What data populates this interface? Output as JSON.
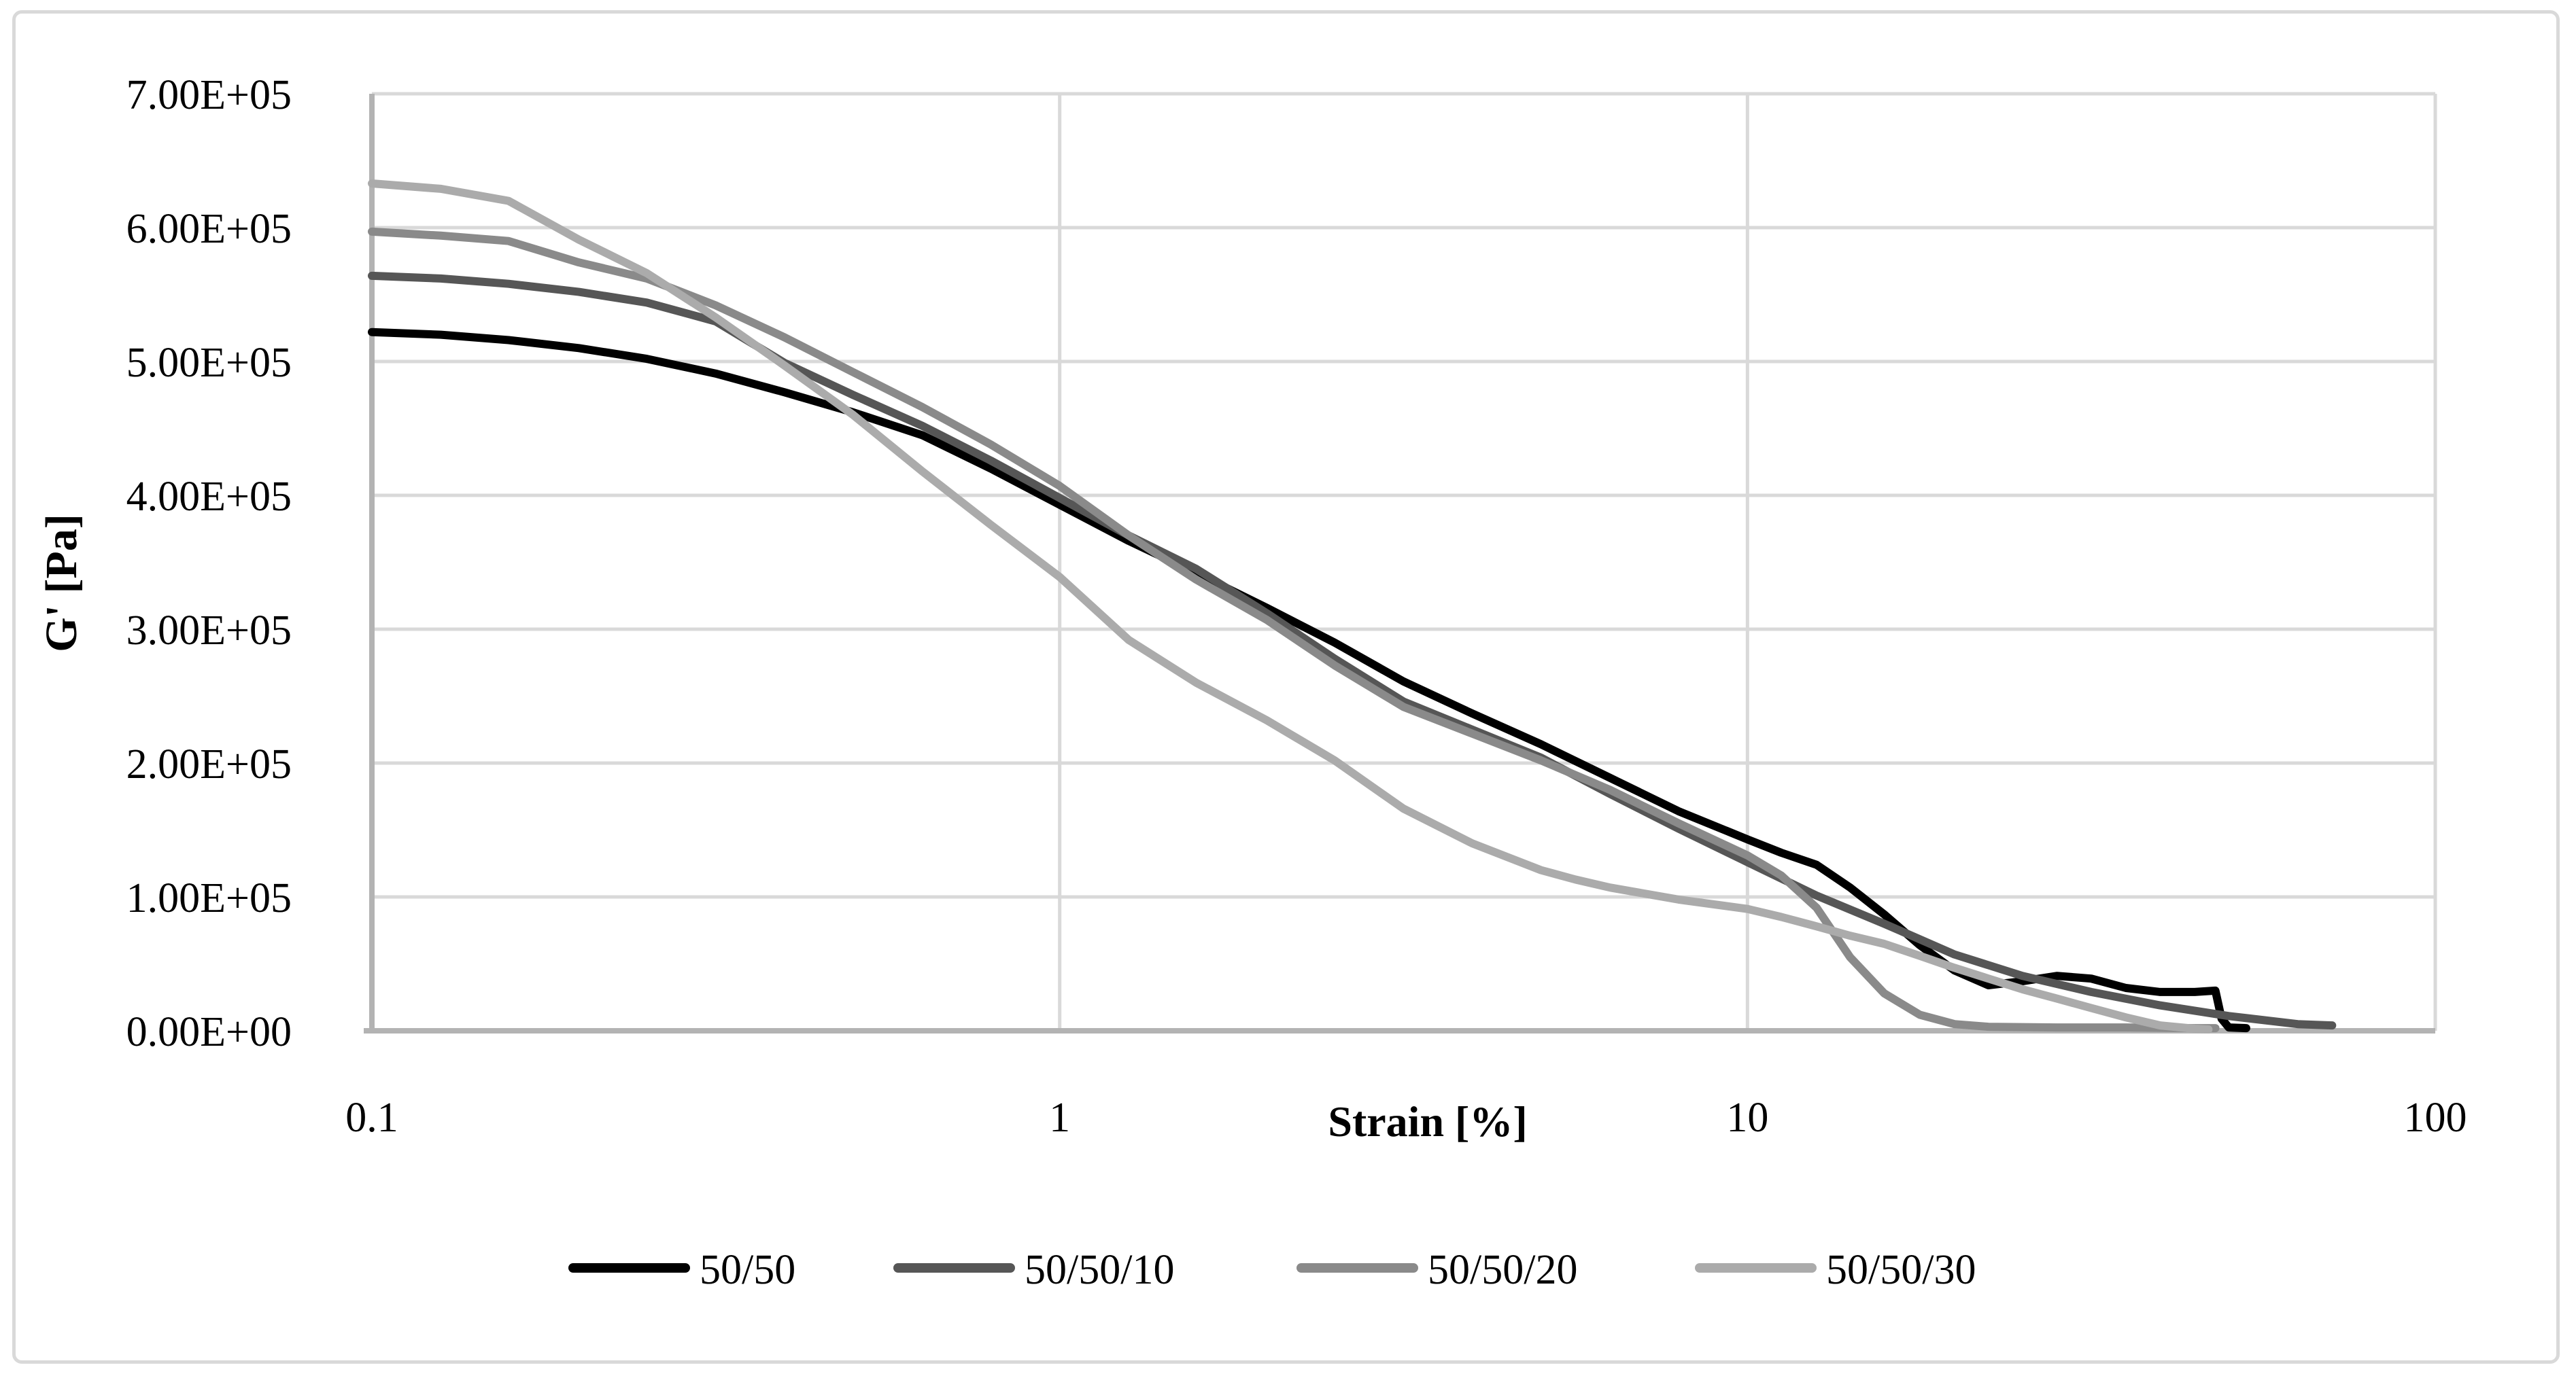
{
  "figure": {
    "background": "#ffffff",
    "border_color": "#d9d9d9"
  },
  "chart_data": {
    "type": "line",
    "title": "",
    "xlabel": "Strain [%]",
    "ylabel": "G' [Pa]",
    "x_scale": "log",
    "xlim": [
      0.1,
      100
    ],
    "ylim": [
      0,
      700000
    ],
    "x_ticks": [
      0.1,
      1,
      10,
      100
    ],
    "x_tick_labels": [
      "0.1",
      "1",
      "10",
      "100"
    ],
    "y_ticks": [
      0,
      100000,
      200000,
      300000,
      400000,
      500000,
      600000,
      700000
    ],
    "y_tick_labels": [
      "0.00E+00",
      "1.00E+05",
      "2.00E+05",
      "3.00E+05",
      "4.00E+05",
      "5.00E+05",
      "6.00E+05",
      "7.00E+05"
    ],
    "grid": true,
    "grid_color": "#d9d9d9",
    "axis_color": "#b3b3b3",
    "legend_position": "bottom",
    "legend_entries": [
      "50/50",
      "50/50/10",
      "50/50/20",
      "50/50/30"
    ],
    "series": [
      {
        "name": "50/50",
        "color": "#000000",
        "points": [
          [
            0.1,
            522000
          ],
          [
            0.126,
            520000
          ],
          [
            0.158,
            516000
          ],
          [
            0.2,
            510000
          ],
          [
            0.251,
            502000
          ],
          [
            0.316,
            491000
          ],
          [
            0.398,
            477000
          ],
          [
            0.501,
            462000
          ],
          [
            0.631,
            445000
          ],
          [
            0.794,
            420000
          ],
          [
            1.0,
            393000
          ],
          [
            1.26,
            366000
          ],
          [
            1.58,
            342000
          ],
          [
            2.0,
            316000
          ],
          [
            2.51,
            290000
          ],
          [
            3.16,
            261000
          ],
          [
            3.98,
            237000
          ],
          [
            5.01,
            214000
          ],
          [
            6.31,
            189000
          ],
          [
            7.94,
            164000
          ],
          [
            10,
            143000
          ],
          [
            11.2,
            133000
          ],
          [
            12.6,
            124000
          ],
          [
            14.1,
            107000
          ],
          [
            15.8,
            87000
          ],
          [
            17.8,
            64000
          ],
          [
            20,
            45000
          ],
          [
            22.4,
            34000
          ],
          [
            25.1,
            37000
          ],
          [
            28.2,
            41000
          ],
          [
            31.6,
            39000
          ],
          [
            35.5,
            32000
          ],
          [
            39.8,
            29000
          ],
          [
            44.7,
            29000
          ],
          [
            47.9,
            30000
          ],
          [
            48.9,
            9000
          ],
          [
            50.1,
            2500
          ],
          [
            53.1,
            2000
          ]
        ]
      },
      {
        "name": "50/50/10",
        "color": "#565656",
        "points": [
          [
            0.1,
            564000
          ],
          [
            0.126,
            562000
          ],
          [
            0.158,
            558000
          ],
          [
            0.2,
            552000
          ],
          [
            0.251,
            544000
          ],
          [
            0.316,
            530000
          ],
          [
            0.398,
            499000
          ],
          [
            0.501,
            475000
          ],
          [
            0.631,
            452000
          ],
          [
            0.794,
            426000
          ],
          [
            1.0,
            398000
          ],
          [
            1.26,
            370000
          ],
          [
            1.58,
            345000
          ],
          [
            2.0,
            312000
          ],
          [
            2.51,
            278000
          ],
          [
            3.16,
            246000
          ],
          [
            3.98,
            225000
          ],
          [
            5.01,
            204000
          ],
          [
            6.31,
            177000
          ],
          [
            7.94,
            151000
          ],
          [
            10,
            126000
          ],
          [
            12.6,
            101000
          ],
          [
            15.8,
            80000
          ],
          [
            20,
            57000
          ],
          [
            25.1,
            41000
          ],
          [
            31.6,
            29000
          ],
          [
            39.8,
            19000
          ],
          [
            50.1,
            11000
          ],
          [
            63.1,
            5000
          ],
          [
            70.8,
            4000
          ]
        ]
      },
      {
        "name": "50/50/20",
        "color": "#8a8a8a",
        "points": [
          [
            0.1,
            597000
          ],
          [
            0.126,
            594000
          ],
          [
            0.158,
            590000
          ],
          [
            0.2,
            574000
          ],
          [
            0.251,
            562000
          ],
          [
            0.316,
            542000
          ],
          [
            0.398,
            518000
          ],
          [
            0.501,
            492000
          ],
          [
            0.631,
            466000
          ],
          [
            0.794,
            438000
          ],
          [
            1.0,
            407000
          ],
          [
            1.26,
            370000
          ],
          [
            1.58,
            337000
          ],
          [
            2.0,
            307000
          ],
          [
            2.51,
            273000
          ],
          [
            3.16,
            242000
          ],
          [
            3.98,
            222000
          ],
          [
            5.01,
            202000
          ],
          [
            6.31,
            180000
          ],
          [
            7.94,
            155000
          ],
          [
            10,
            131000
          ],
          [
            11.2,
            116000
          ],
          [
            12.6,
            92000
          ],
          [
            14.1,
            55000
          ],
          [
            15.8,
            28000
          ],
          [
            17.8,
            12000
          ],
          [
            20,
            5000
          ],
          [
            22.4,
            3000
          ],
          [
            28.2,
            2500
          ],
          [
            35.5,
            2500
          ],
          [
            44.7,
            2000
          ],
          [
            47.9,
            2000
          ]
        ]
      },
      {
        "name": "50/50/30",
        "color": "#ababab",
        "points": [
          [
            0.1,
            633000
          ],
          [
            0.126,
            629000
          ],
          [
            0.158,
            620000
          ],
          [
            0.2,
            591000
          ],
          [
            0.251,
            566000
          ],
          [
            0.316,
            533000
          ],
          [
            0.398,
            497000
          ],
          [
            0.501,
            460000
          ],
          [
            0.631,
            418000
          ],
          [
            0.794,
            378000
          ],
          [
            1.0,
            339000
          ],
          [
            1.26,
            292000
          ],
          [
            1.58,
            260000
          ],
          [
            2.0,
            232000
          ],
          [
            2.51,
            202000
          ],
          [
            3.16,
            166000
          ],
          [
            3.98,
            140000
          ],
          [
            5.01,
            120000
          ],
          [
            5.62,
            113000
          ],
          [
            6.31,
            107000
          ],
          [
            7.94,
            98000
          ],
          [
            10,
            91000
          ],
          [
            11.2,
            85000
          ],
          [
            12.6,
            78000
          ],
          [
            14.1,
            71000
          ],
          [
            15.8,
            65000
          ],
          [
            17.8,
            56000
          ],
          [
            20,
            47000
          ],
          [
            22.4,
            39000
          ],
          [
            25.1,
            31000
          ],
          [
            28.2,
            24000
          ],
          [
            31.6,
            17000
          ],
          [
            35.5,
            10000
          ],
          [
            39.8,
            4000
          ],
          [
            44.7,
            1500
          ],
          [
            46.8,
            1000
          ]
        ]
      }
    ]
  }
}
